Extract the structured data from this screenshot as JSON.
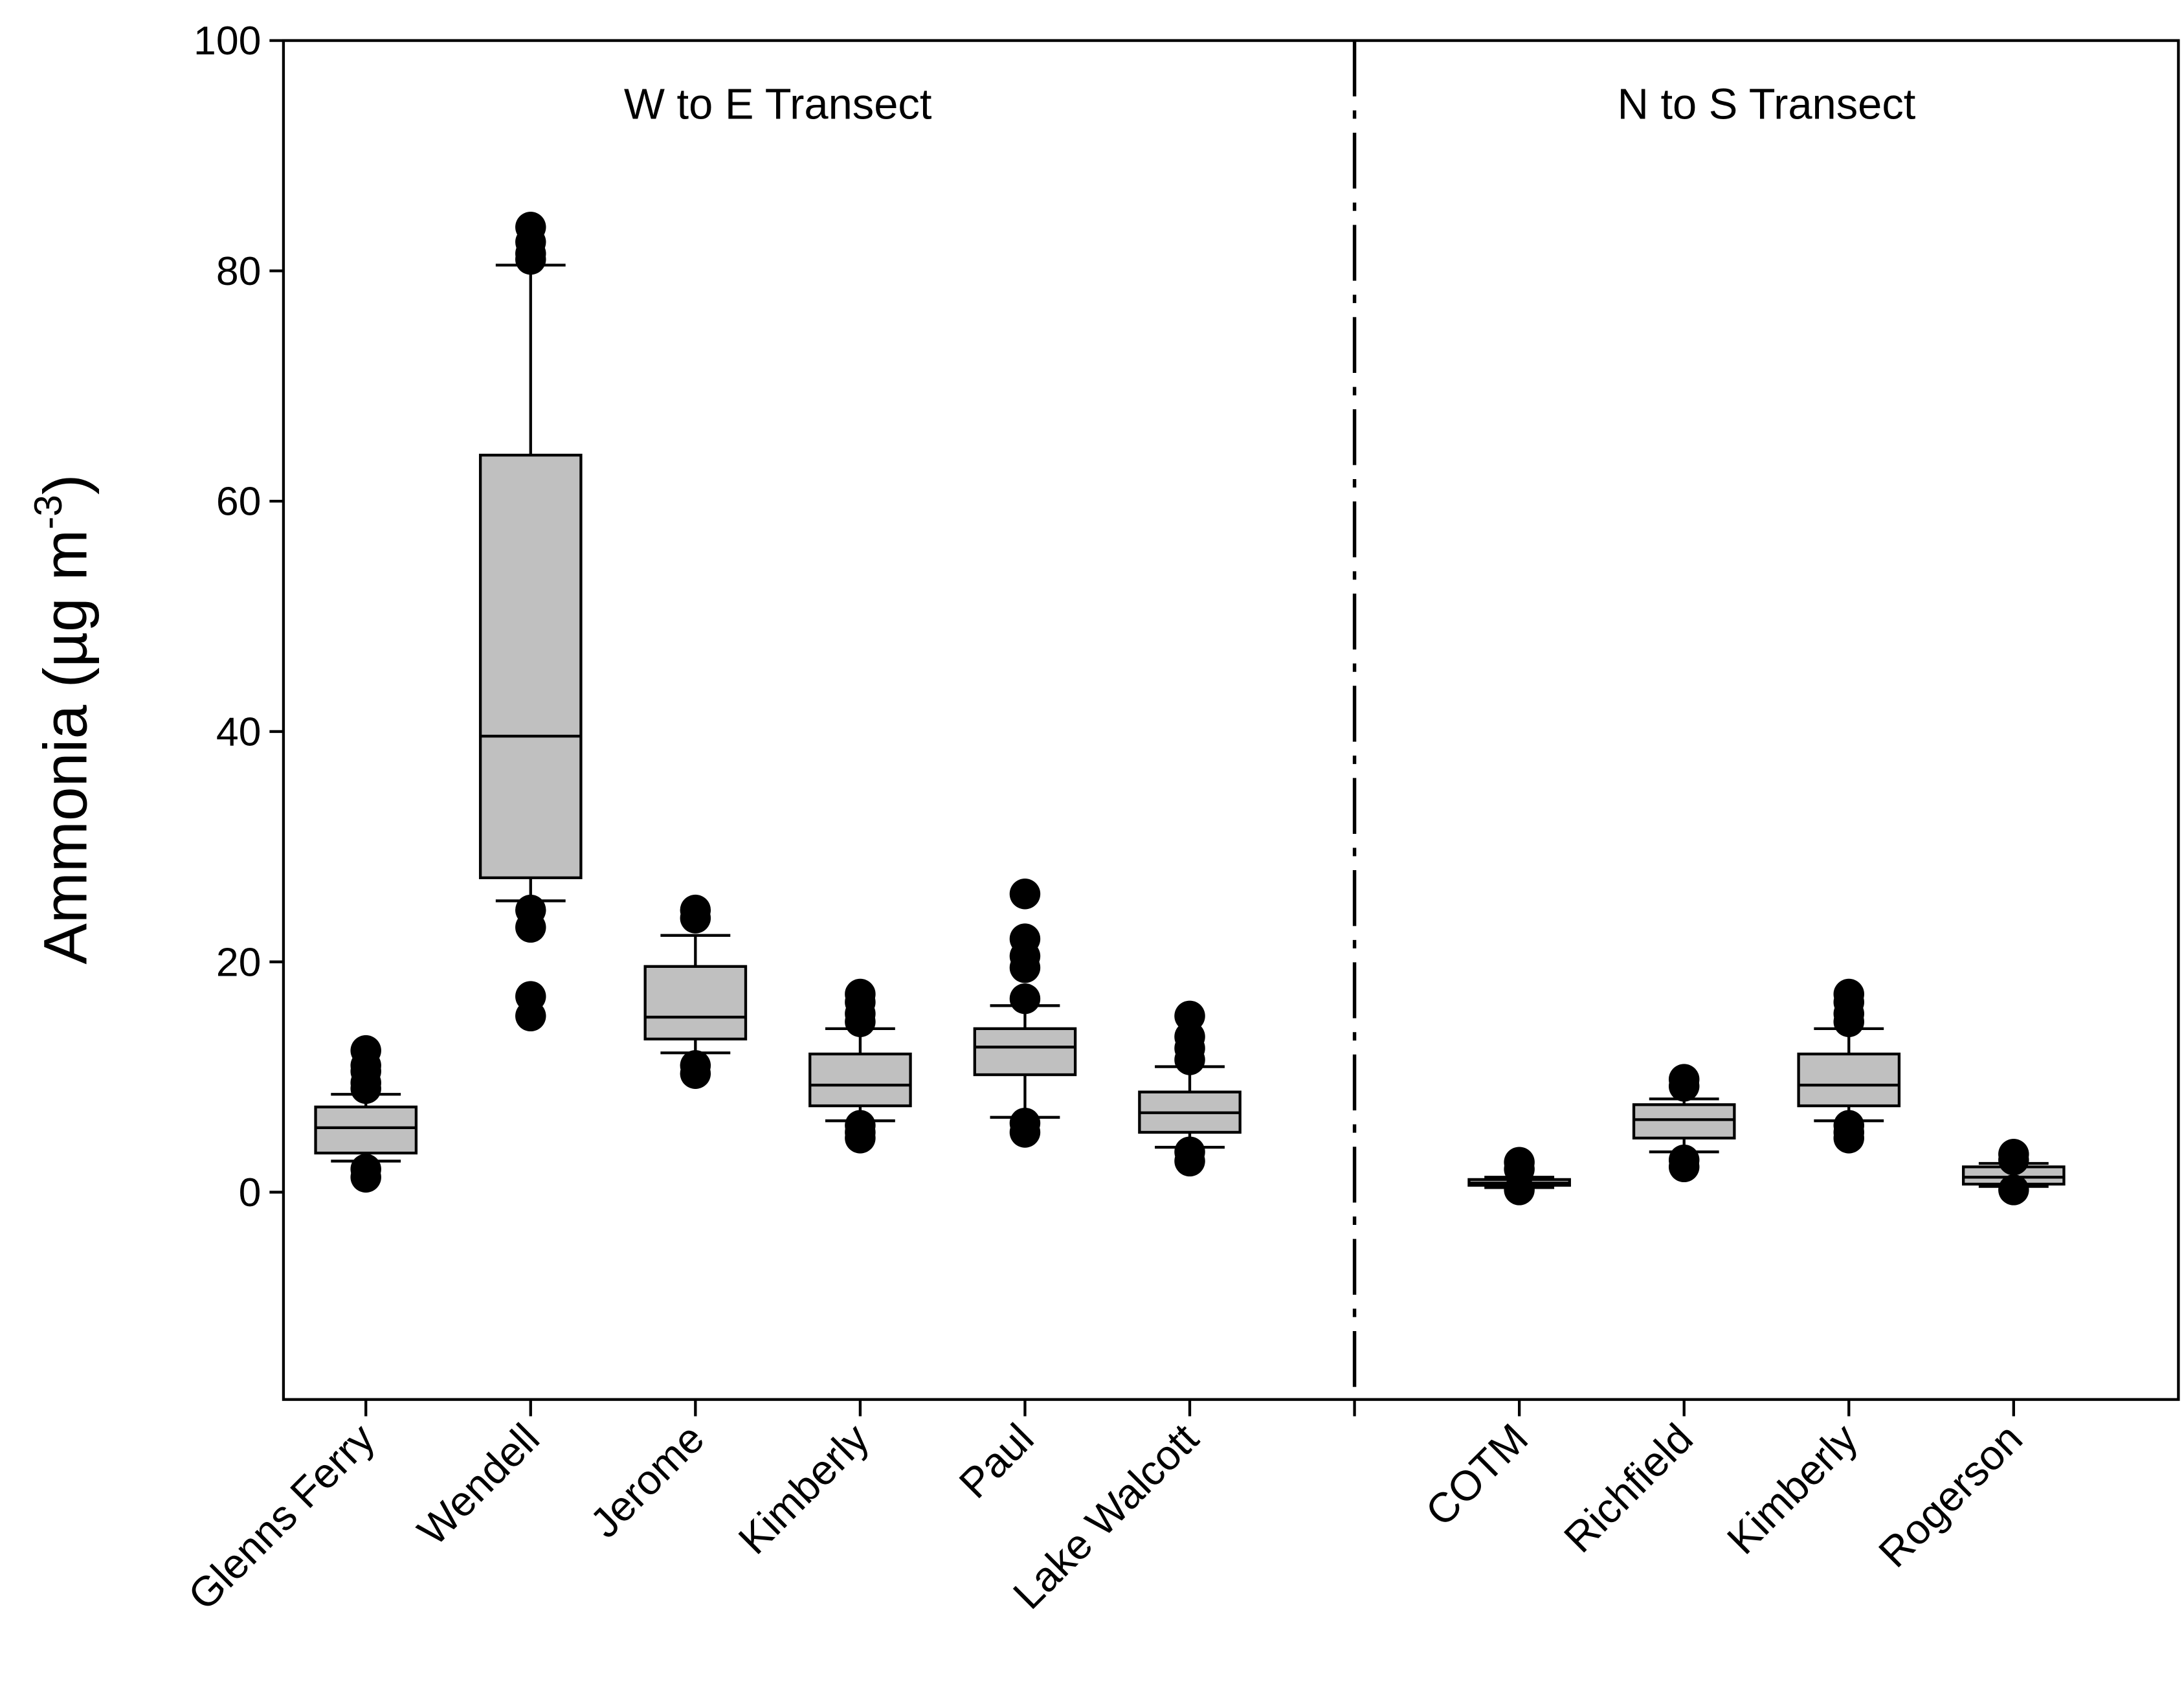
{
  "chart_data": {
    "type": "box",
    "ylabel": "Ammonia (µg m",
    "ylabel_sup": "-3",
    "ylabel_end": ")",
    "annotations": [
      {
        "text": "W to E Transect",
        "at": 2.5
      },
      {
        "text": "N to S Transect",
        "at": 8.5
      }
    ],
    "categories": [
      "Glenns Ferry",
      "Wendell",
      "Jerome",
      "Kimberly",
      "Paul",
      "Lake Walcott",
      null,
      "COTM",
      "Richfield",
      "Kimberly",
      "Rogerson"
    ],
    "color": "#c0c0c0",
    "xlim": [
      -0.5,
      11
    ],
    "ylim": [
      -18,
      100
    ],
    "yticks": [
      0,
      20,
      40,
      60,
      80,
      100
    ],
    "boxes": [
      {
        "whislo": 2.7,
        "q1": 3.4,
        "med": 5.6,
        "q3": 7.4,
        "whishi": 8.5,
        "fliers": [
          12.3,
          11,
          10.5,
          9.5,
          9,
          2,
          1.3
        ]
      },
      {
        "whislo": 25.3,
        "q1": 27.3,
        "med": 39.6,
        "q3": 64,
        "whishi": 80.5,
        "fliers": [
          83.8,
          82.5,
          81.5,
          81,
          24.5,
          23,
          17,
          15.3
        ]
      },
      {
        "whislo": 12.1,
        "q1": 13.3,
        "med": 15.2,
        "q3": 19.6,
        "whishi": 22.3,
        "fliers": [
          24.5,
          23.8,
          11,
          10.3
        ]
      },
      {
        "whislo": 6.2,
        "q1": 7.5,
        "med": 9.3,
        "q3": 12,
        "whishi": 14.2,
        "fliers": [
          17.2,
          16.5,
          15.5,
          14.8,
          5.8,
          5.2,
          4.7
        ]
      },
      {
        "whislo": 6.5,
        "q1": 10.2,
        "med": 12.6,
        "q3": 14.2,
        "whishi": 16.2,
        "fliers": [
          25.9,
          22,
          20.5,
          19.5,
          16.8,
          6,
          5.2
        ]
      },
      {
        "whislo": 3.9,
        "q1": 5.2,
        "med": 6.9,
        "q3": 8.7,
        "whishi": 10.9,
        "fliers": [
          15.3,
          13.5,
          12.5,
          11.5,
          3.5,
          2.7
        ]
      },
      null,
      {
        "whislo": 0.4,
        "q1": 0.6,
        "med": 0.8,
        "q3": 1.1,
        "whishi": 1.3,
        "fliers": [
          2.6,
          2,
          0.2
        ]
      },
      {
        "whislo": 3.5,
        "q1": 4.7,
        "med": 6.3,
        "q3": 7.6,
        "whishi": 8.1,
        "fliers": [
          9.8,
          9.2,
          2.8,
          2.2
        ]
      },
      {
        "whislo": 6.2,
        "q1": 7.5,
        "med": 9.3,
        "q3": 12,
        "whishi": 14.2,
        "fliers": [
          17.2,
          16.5,
          15.5,
          14.8,
          5.8,
          5.2,
          4.7
        ]
      },
      {
        "whislo": 0.5,
        "q1": 0.7,
        "med": 1.3,
        "q3": 2.2,
        "whishi": 2.5,
        "fliers": [
          3.3,
          2.8,
          0.2
        ]
      }
    ]
  }
}
